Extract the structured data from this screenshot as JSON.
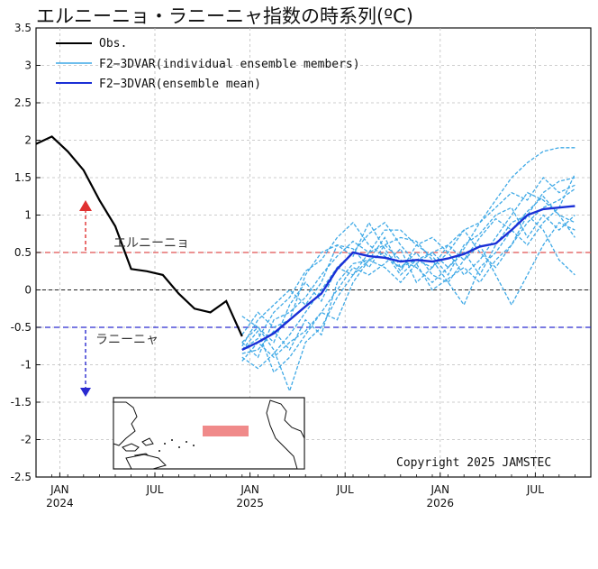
{
  "title": "エルニーニョ・ラニーニャ指数の時系列(ºC)",
  "copyright": "Copyright  2025  JAMSTEC",
  "annotations": {
    "el_nino": "エルニーニョ",
    "la_nina": "ラニーニャ"
  },
  "colors": {
    "obs": "#000000",
    "members": "#3fa9e6",
    "mean": "#1a2fd6",
    "el_line": "#e05050",
    "la_line": "#2a2ad0"
  },
  "chart_data": {
    "type": "line",
    "title": "エルニーニョ・ラニーニャ指数の時系列(ºC)",
    "xlabel": "",
    "ylabel": "",
    "ylim": [
      -2.5,
      3.5
    ],
    "yticks": [
      "3.5",
      "3",
      "2.5",
      "2",
      "1.5",
      "1",
      "0.5",
      "0",
      "-0.5",
      "-1",
      "-1.5",
      "-2",
      "-2.5"
    ],
    "xticks": [
      {
        "month": 1,
        "line1": "JAN",
        "line2": "2024"
      },
      {
        "month": 7,
        "line1": "JUL",
        "line2": ""
      },
      {
        "month": 13,
        "line1": "JAN",
        "line2": "2025"
      },
      {
        "month": 19,
        "line1": "JUL",
        "line2": ""
      },
      {
        "month": 25,
        "line1": "JAN",
        "line2": "2026"
      },
      {
        "month": 31,
        "line1": "JUL",
        "line2": ""
      }
    ],
    "xlim_months": [
      -0.5,
      34.5
    ],
    "grid": true,
    "legend_position": "top-left",
    "reference_lines": [
      0.5,
      -0.5
    ],
    "series": [
      {
        "name": "Obs.",
        "style": "solid-black",
        "x": [
          -0.5,
          0.5,
          1.5,
          2.5,
          3.5,
          4.5,
          5.5,
          6.5,
          7.5,
          8.5,
          9.5,
          10.5,
          11.5,
          12.5
        ],
        "y": [
          1.95,
          2.05,
          1.85,
          1.6,
          1.2,
          0.85,
          0.28,
          0.25,
          0.2,
          -0.05,
          -0.25,
          -0.3,
          -0.15,
          -0.62
        ]
      },
      {
        "name": "F2−3DVAR(individual ensemble members)",
        "style": "dashed-lightblue",
        "members": [
          {
            "x": [
              12.5,
              13.5,
              14.5,
              15.5,
              16.5,
              17.5,
              18.5,
              19.5,
              20.5,
              21.5,
              22.5,
              23.5,
              24.5,
              25.5,
              26.5,
              27.5,
              28.5,
              29.5,
              30.5,
              31.5,
              32.5,
              33.5
            ],
            "y": [
              -0.8,
              -0.65,
              -0.3,
              -0.1,
              0.25,
              0.4,
              0.7,
              0.9,
              0.6,
              0.45,
              0.3,
              0.4,
              0.5,
              0.6,
              0.8,
              0.9,
              1.2,
              1.5,
              1.7,
              1.85,
              1.9,
              1.9
            ]
          },
          {
            "x": [
              12.5,
              13.5,
              14.5,
              15.5,
              16.5,
              17.5,
              18.5,
              19.5,
              20.5,
              21.5,
              22.5,
              23.5,
              24.5,
              25.5,
              26.5,
              27.5,
              28.5,
              29.5,
              30.5,
              31.5,
              32.5,
              33.5
            ],
            "y": [
              -0.9,
              -1.05,
              -0.85,
              -0.6,
              -0.3,
              0.0,
              0.3,
              0.5,
              0.75,
              0.9,
              0.6,
              0.35,
              0.5,
              0.3,
              0.55,
              0.9,
              1.1,
              1.3,
              1.2,
              1.5,
              1.3,
              1.4
            ]
          },
          {
            "x": [
              12.5,
              13.5,
              14.5,
              15.5,
              16.5,
              17.5,
              18.5,
              19.5,
              20.5,
              21.5,
              22.5,
              23.5,
              24.5,
              25.5,
              26.5,
              27.5,
              28.5,
              29.5,
              30.5,
              31.5,
              32.5,
              33.5
            ],
            "y": [
              -0.35,
              -0.5,
              -0.8,
              -1.35,
              -0.7,
              -0.5,
              -0.1,
              0.2,
              0.5,
              0.6,
              0.4,
              0.3,
              0.1,
              0.3,
              0.5,
              0.2,
              0.6,
              0.9,
              1.0,
              0.8,
              0.4,
              0.2
            ]
          },
          {
            "x": [
              12.5,
              13.5,
              14.5,
              15.5,
              16.5,
              17.5,
              18.5,
              19.5,
              20.5,
              21.5,
              22.5,
              23.5,
              24.5,
              25.5,
              26.5,
              27.5,
              28.5,
              29.5,
              30.5,
              31.5,
              32.5,
              33.5
            ],
            "y": [
              -0.7,
              -0.5,
              -0.7,
              -0.2,
              0.1,
              -0.15,
              0.3,
              0.2,
              0.4,
              0.7,
              0.3,
              0.5,
              0.2,
              0.1,
              0.4,
              0.6,
              0.2,
              -0.2,
              0.2,
              0.6,
              0.9,
              0.8
            ]
          },
          {
            "x": [
              12.5,
              13.5,
              14.5,
              15.5,
              16.5,
              17.5,
              18.5,
              19.5,
              20.5,
              21.5,
              22.5,
              23.5,
              24.5,
              25.5,
              26.5,
              27.5,
              28.5,
              29.5,
              30.5,
              31.5,
              32.5,
              33.5
            ],
            "y": [
              -0.6,
              -0.3,
              -0.5,
              -0.4,
              0.2,
              0.5,
              0.6,
              0.45,
              0.9,
              0.55,
              0.25,
              0.6,
              0.7,
              0.5,
              0.2,
              0.4,
              0.7,
              1.0,
              1.3,
              1.2,
              1.0,
              0.7
            ]
          },
          {
            "x": [
              12.5,
              13.5,
              14.5,
              15.5,
              16.5,
              17.5,
              18.5,
              19.5,
              20.5,
              21.5,
              22.5,
              23.5,
              24.5,
              25.5,
              26.5,
              27.5,
              28.5,
              29.5,
              30.5,
              31.5,
              32.5,
              33.5
            ],
            "y": [
              -0.85,
              -0.8,
              -0.55,
              -0.8,
              -0.4,
              -0.6,
              0.1,
              0.35,
              0.4,
              0.3,
              0.1,
              0.35,
              0.0,
              0.15,
              0.3,
              0.1,
              0.4,
              0.6,
              0.9,
              1.1,
              1.2,
              1.35
            ]
          },
          {
            "x": [
              12.5,
              13.5,
              14.5,
              15.5,
              16.5,
              17.5,
              18.5,
              19.5,
              20.5,
              21.5,
              22.5,
              23.5,
              24.5,
              25.5,
              26.5,
              27.5,
              28.5,
              29.5,
              30.5,
              31.5,
              32.5,
              33.5
            ],
            "y": [
              -0.95,
              -0.7,
              -0.9,
              -0.7,
              -0.55,
              -0.3,
              0.0,
              0.3,
              0.2,
              0.35,
              0.55,
              0.1,
              0.3,
              0.6,
              0.4,
              0.7,
              0.95,
              0.8,
              0.6,
              0.9,
              1.1,
              1.55
            ]
          },
          {
            "x": [
              12.5,
              13.5,
              14.5,
              15.5,
              16.5,
              17.5,
              18.5,
              19.5,
              20.5,
              21.5,
              22.5,
              23.5,
              24.5,
              25.5,
              26.5,
              27.5,
              28.5,
              29.5,
              30.5,
              31.5,
              32.5,
              33.5
            ],
            "y": [
              -0.7,
              -0.9,
              -0.4,
              -0.3,
              -0.1,
              0.2,
              0.45,
              0.65,
              0.5,
              0.8,
              0.8,
              0.6,
              0.45,
              0.2,
              0.6,
              0.75,
              1.0,
              1.1,
              0.7,
              1.0,
              0.8,
              1.0
            ]
          },
          {
            "x": [
              12.5,
              13.5,
              14.5,
              15.5,
              16.5,
              17.5,
              18.5,
              19.5,
              20.5,
              21.5,
              22.5,
              23.5,
              24.5,
              25.5,
              26.5,
              27.5,
              28.5,
              29.5,
              30.5,
              31.5,
              32.5,
              33.5
            ],
            "y": [
              -0.8,
              -0.55,
              -1.1,
              -0.9,
              -0.6,
              -0.3,
              -0.4,
              0.1,
              0.4,
              0.5,
              0.2,
              0.4,
              0.3,
              0.5,
              0.8,
              0.5,
              0.3,
              0.6,
              1.0,
              1.3,
              1.45,
              1.5
            ]
          },
          {
            "x": [
              12.5,
              13.5,
              14.5,
              15.5,
              16.5,
              17.5,
              18.5,
              19.5,
              20.5,
              21.5,
              22.5,
              23.5,
              24.5,
              25.5,
              26.5,
              27.5,
              28.5,
              29.5,
              30.5,
              31.5,
              32.5,
              33.5
            ],
            "y": [
              -0.75,
              -0.4,
              -0.2,
              0.0,
              -0.2,
              0.1,
              0.6,
              0.55,
              0.3,
              0.6,
              0.7,
              0.65,
              0.4,
              0.1,
              -0.2,
              0.3,
              0.5,
              0.8,
              1.05,
              1.25,
              1.0,
              0.9
            ]
          }
        ]
      },
      {
        "name": "F2−3DVAR(ensemble mean)",
        "style": "solid-blue",
        "x": [
          12.5,
          13.5,
          14.5,
          15.5,
          16.5,
          17.5,
          18.5,
          19.5,
          20.5,
          21.5,
          22.5,
          23.5,
          24.5,
          25.5,
          26.5,
          27.5,
          28.5,
          29.5,
          30.5,
          31.5,
          32.5,
          33.5
        ],
        "y": [
          -0.8,
          -0.7,
          -0.58,
          -0.4,
          -0.22,
          -0.05,
          0.28,
          0.5,
          0.45,
          0.43,
          0.38,
          0.4,
          0.38,
          0.42,
          0.48,
          0.58,
          0.62,
          0.8,
          1.0,
          1.08,
          1.1,
          1.12
        ]
      }
    ]
  }
}
